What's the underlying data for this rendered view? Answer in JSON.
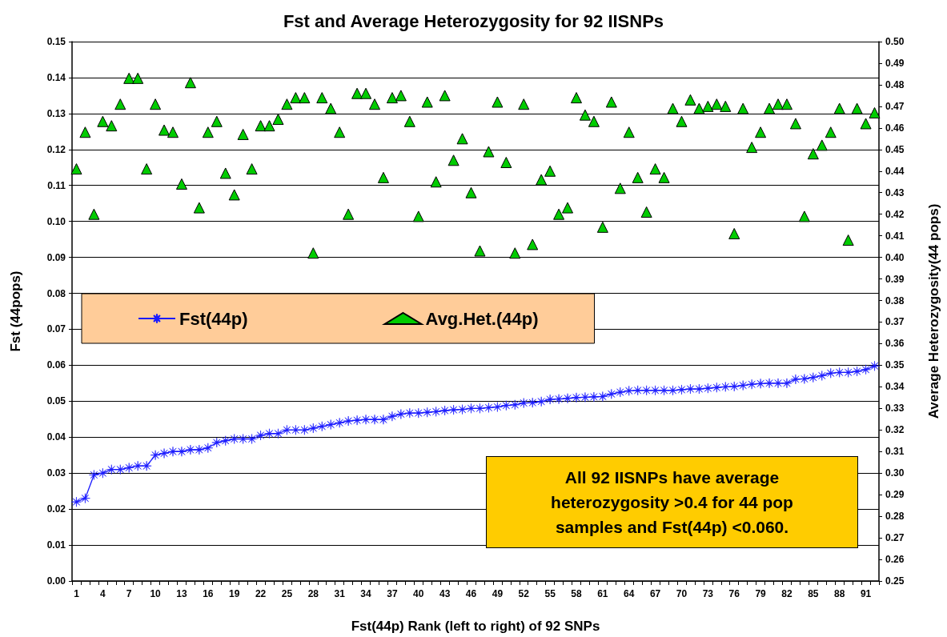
{
  "chart_data": {
    "type": "line",
    "title": "Fst and Average Heterozygosity for 92 IISNPs",
    "xlabel": "Fst(44p) Rank (left to right) of 92 SNPs",
    "ylabel": "Fst (44pops)",
    "y2label": "Average Heterozygosity(44 pops)",
    "categories": [
      "1",
      null,
      null,
      "4",
      null,
      null,
      "7",
      null,
      null,
      "10",
      null,
      null,
      "13",
      null,
      null,
      "16",
      null,
      null,
      "19",
      null,
      null,
      "22",
      null,
      null,
      "25",
      null,
      null,
      "28",
      null,
      null,
      "31",
      null,
      null,
      "34",
      null,
      null,
      "37",
      null,
      null,
      "40",
      null,
      null,
      "43",
      null,
      null,
      "46",
      null,
      null,
      "49",
      null,
      null,
      "52",
      null,
      null,
      "55",
      null,
      null,
      "58",
      null,
      null,
      "61",
      null,
      null,
      "64",
      null,
      null,
      "67",
      null,
      null,
      "70",
      null,
      null,
      "73",
      null,
      null,
      "76",
      null,
      null,
      "79",
      null,
      null,
      "82",
      null,
      null,
      "85",
      null,
      null,
      "88",
      null,
      null,
      "91",
      null
    ],
    "series": [
      {
        "name": "Fst(44p)",
        "type": "line",
        "color": "#1a1aff",
        "marker": "star",
        "values": [
          0.022,
          0.023,
          0.0295,
          0.03,
          0.031,
          0.031,
          0.0315,
          0.032,
          0.032,
          0.035,
          0.0355,
          0.036,
          0.036,
          0.0365,
          0.0365,
          0.037,
          0.0385,
          0.039,
          0.0395,
          0.0395,
          0.0395,
          0.0405,
          0.041,
          0.041,
          0.042,
          0.042,
          0.042,
          0.0425,
          0.043,
          0.0435,
          0.044,
          0.0445,
          0.0447,
          0.0449,
          0.0449,
          0.0449,
          0.0458,
          0.0464,
          0.0467,
          0.0467,
          0.0469,
          0.0471,
          0.0474,
          0.0476,
          0.0477,
          0.048,
          0.048,
          0.0482,
          0.0484,
          0.0488,
          0.049,
          0.0495,
          0.0496,
          0.0499,
          0.0505,
          0.0506,
          0.0508,
          0.051,
          0.0511,
          0.0512,
          0.0513,
          0.052,
          0.0525,
          0.0529,
          0.053,
          0.053,
          0.053,
          0.053,
          0.053,
          0.0532,
          0.0534,
          0.0534,
          0.0536,
          0.0538,
          0.054,
          0.0541,
          0.0544,
          0.0547,
          0.0549,
          0.055,
          0.055,
          0.055,
          0.0561,
          0.0562,
          0.0566,
          0.0571,
          0.0578,
          0.058,
          0.058,
          0.0583,
          0.0588,
          0.0598
        ]
      },
      {
        "name": "Avg.Het.(44p)",
        "type": "scatter",
        "axis": "y2",
        "color": "#00cc00",
        "marker": "triangle",
        "values": [
          0.441,
          0.458,
          0.42,
          0.463,
          0.461,
          0.471,
          0.483,
          0.483,
          0.441,
          0.471,
          0.459,
          0.458,
          0.434,
          0.481,
          0.423,
          0.458,
          0.463,
          0.439,
          0.429,
          0.457,
          0.441,
          0.461,
          0.461,
          0.464,
          0.471,
          0.474,
          0.474,
          0.402,
          0.474,
          0.469,
          0.458,
          0.42,
          0.476,
          0.476,
          0.471,
          0.437,
          0.474,
          0.475,
          0.463,
          0.419,
          0.472,
          0.435,
          0.475,
          0.445,
          0.455,
          0.43,
          0.403,
          0.449,
          0.472,
          0.444,
          0.402,
          0.471,
          0.406,
          0.436,
          0.44,
          0.42,
          0.423,
          0.474,
          0.466,
          0.463,
          0.414,
          0.472,
          0.432,
          0.458,
          0.437,
          0.421,
          0.441,
          0.437,
          0.469,
          0.463,
          0.473,
          0.469,
          0.47,
          0.471,
          0.47,
          0.411,
          0.469,
          0.451,
          0.458,
          0.469,
          0.471,
          0.471,
          0.462,
          0.419,
          0.448,
          0.452,
          0.458,
          0.469,
          0.408,
          0.469,
          0.462,
          0.467
        ]
      }
    ],
    "ylim": [
      0,
      0.15
    ],
    "yticks": [
      {
        "value": 0,
        "label": "0.00"
      },
      {
        "value": 0.01,
        "label": "0.01"
      },
      {
        "value": 0.02,
        "label": "0.02"
      },
      {
        "value": 0.03,
        "label": "0.03"
      },
      {
        "value": 0.04,
        "label": "0.04"
      },
      {
        "value": 0.05,
        "label": "0.05"
      },
      {
        "value": 0.06,
        "label": "0.06"
      },
      {
        "value": 0.07,
        "label": "0.07"
      },
      {
        "value": 0.08,
        "label": "0.08"
      },
      {
        "value": 0.09,
        "label": "0.09"
      },
      {
        "value": 0.1,
        "label": "0.10"
      },
      {
        "value": 0.11,
        "label": "0.11"
      },
      {
        "value": 0.12,
        "label": "0.12"
      },
      {
        "value": 0.13,
        "label": "0.13"
      },
      {
        "value": 0.14,
        "label": "0.14"
      },
      {
        "value": 0.15,
        "label": "0.15"
      }
    ],
    "y2lim": [
      0.25,
      0.5
    ],
    "y2ticks": [
      {
        "value": 0.25,
        "label": "0.25"
      },
      {
        "value": 0.26,
        "label": "0.26"
      },
      {
        "value": 0.27,
        "label": "0.27"
      },
      {
        "value": 0.28,
        "label": "0.28"
      },
      {
        "value": 0.29,
        "label": "0.29"
      },
      {
        "value": 0.3,
        "label": "0.30"
      },
      {
        "value": 0.31,
        "label": "0.31"
      },
      {
        "value": 0.32,
        "label": "0.32"
      },
      {
        "value": 0.33,
        "label": "0.33"
      },
      {
        "value": 0.34,
        "label": "0.34"
      },
      {
        "value": 0.35,
        "label": "0.35"
      },
      {
        "value": 0.36,
        "label": "0.36"
      },
      {
        "value": 0.37,
        "label": "0.37"
      },
      {
        "value": 0.38,
        "label": "0.38"
      },
      {
        "value": 0.39,
        "label": "0.39"
      },
      {
        "value": 0.4,
        "label": "0.40"
      },
      {
        "value": 0.41,
        "label": "0.41"
      },
      {
        "value": 0.42,
        "label": "0.42"
      },
      {
        "value": 0.43,
        "label": "0.43"
      },
      {
        "value": 0.44,
        "label": "0.44"
      },
      {
        "value": 0.45,
        "label": "0.45"
      },
      {
        "value": 0.46,
        "label": "0.46"
      },
      {
        "value": 0.47,
        "label": "0.47"
      },
      {
        "value": 0.48,
        "label": "0.48"
      },
      {
        "value": 0.49,
        "label": "0.49"
      },
      {
        "value": 0.5,
        "label": "0.50"
      }
    ],
    "grid": "y",
    "legend": "left",
    "annotations": [
      "All 92 IISNPs have average heterozygosity >0.4 for 44 pop samples and Fst(44p) <0.060."
    ]
  }
}
